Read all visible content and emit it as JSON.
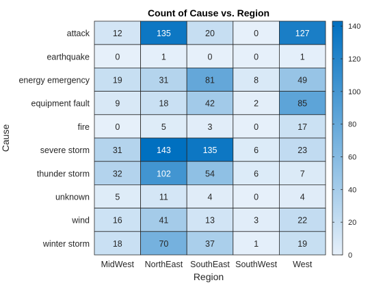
{
  "chart_data": {
    "type": "heatmap",
    "title": "Count of Cause vs. Region",
    "xlabel": "Region",
    "ylabel": "Cause",
    "x_categories": [
      "MidWest",
      "NorthEast",
      "SouthEast",
      "SouthWest",
      "West"
    ],
    "y_categories": [
      "attack",
      "earthquake",
      "energy emergency",
      "equipment fault",
      "fire",
      "severe storm",
      "thunder storm",
      "unknown",
      "wind",
      "winter storm"
    ],
    "values": [
      [
        12,
        135,
        20,
        0,
        127
      ],
      [
        0,
        1,
        0,
        0,
        1
      ],
      [
        19,
        31,
        81,
        8,
        49
      ],
      [
        9,
        18,
        42,
        2,
        85
      ],
      [
        0,
        5,
        3,
        0,
        17
      ],
      [
        31,
        143,
        135,
        6,
        23
      ],
      [
        32,
        102,
        54,
        6,
        7
      ],
      [
        5,
        11,
        4,
        0,
        4
      ],
      [
        16,
        41,
        13,
        3,
        22
      ],
      [
        18,
        70,
        37,
        1,
        19
      ]
    ],
    "colorbar": {
      "range": [
        0,
        143
      ],
      "ticks": [
        0,
        20,
        40,
        60,
        80,
        100,
        120,
        140
      ],
      "color_low": "#e6f0fa",
      "color_high": "#0070c0"
    },
    "text_color_dark": "#262626",
    "text_color_light": "#ffffff"
  }
}
